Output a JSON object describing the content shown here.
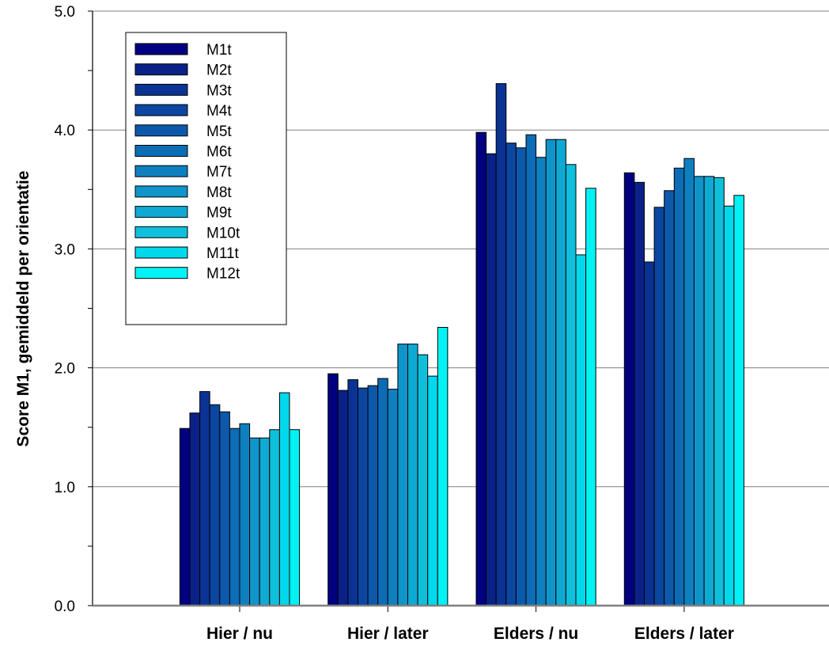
{
  "chart_data": {
    "type": "bar",
    "title": "",
    "xlabel": "",
    "ylabel": "Score M1, gemiddeld per orientatie",
    "ylim": [
      0,
      5
    ],
    "yticks": [
      "0.0",
      "1.0",
      "2.0",
      "3.0",
      "4.0",
      "5.0"
    ],
    "grid": true,
    "legend_position": "top-left",
    "categories": [
      "Hier / nu",
      "Hier / later",
      "Elders / nu",
      "Elders / later"
    ],
    "series": [
      {
        "name": "M1t",
        "color": "#000080",
        "values": [
          1.49,
          1.95,
          3.98,
          3.64
        ]
      },
      {
        "name": "M2t",
        "color": "#0a2288",
        "values": [
          1.62,
          1.81,
          3.8,
          3.56
        ]
      },
      {
        "name": "M3t",
        "color": "#0a3394",
        "values": [
          1.8,
          1.9,
          4.39,
          2.89
        ]
      },
      {
        "name": "M4t",
        "color": "#0b46a0",
        "values": [
          1.69,
          1.83,
          3.89,
          3.35
        ]
      },
      {
        "name": "M5t",
        "color": "#0c59ab",
        "values": [
          1.63,
          1.85,
          3.85,
          3.49
        ]
      },
      {
        "name": "M6t",
        "color": "#0c6cb6",
        "values": [
          1.49,
          1.91,
          3.96,
          3.68
        ]
      },
      {
        "name": "M7t",
        "color": "#0e80c0",
        "values": [
          1.53,
          1.82,
          3.77,
          3.76
        ]
      },
      {
        "name": "M8t",
        "color": "#0f95ca",
        "values": [
          1.41,
          2.2,
          3.92,
          3.61
        ]
      },
      {
        "name": "M9t",
        "color": "#0eaad4",
        "values": [
          1.41,
          2.2,
          3.92,
          3.61
        ]
      },
      {
        "name": "M10t",
        "color": "#0ec0dc",
        "values": [
          1.48,
          2.11,
          3.71,
          3.6
        ]
      },
      {
        "name": "M11t",
        "color": "#00d8ec",
        "values": [
          1.79,
          1.93,
          2.95,
          3.36
        ]
      },
      {
        "name": "M12t",
        "color": "#00f2f4",
        "values": [
          1.48,
          2.34,
          3.51,
          3.45
        ]
      }
    ]
  }
}
